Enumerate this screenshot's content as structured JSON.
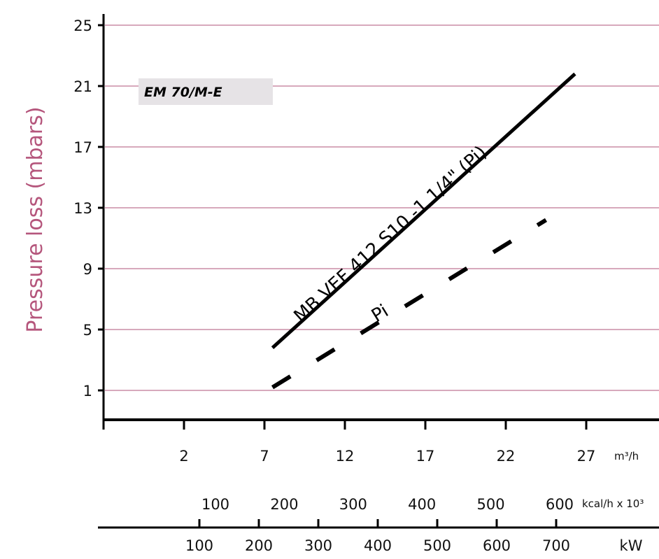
{
  "chart_data": {
    "type": "line",
    "title": "EM 70/M-E",
    "ylabel": "Pressure loss (mbars)",
    "ylim": [
      -1,
      25
    ],
    "grid": true,
    "y_ticks": [
      "1",
      "5",
      "9",
      "13",
      "17",
      "21",
      "25"
    ],
    "y_tick_values": [
      1,
      5,
      9,
      13,
      17,
      21,
      25
    ],
    "axes": [
      {
        "unit": "m³/h",
        "ticks": [
          "2",
          "7",
          "12",
          "17",
          "22",
          "27"
        ],
        "tick_values": [
          2,
          7,
          12,
          17,
          22,
          27
        ]
      },
      {
        "unit": "kcal/h x 10³",
        "ticks": [
          "100",
          "200",
          "300",
          "400",
          "500",
          "600"
        ],
        "tick_values": [
          100,
          200,
          300,
          400,
          500,
          600
        ]
      },
      {
        "unit": "kW",
        "ticks": [
          "100",
          "200",
          "300",
          "400",
          "500",
          "600",
          "700"
        ],
        "tick_values": [
          100,
          200,
          300,
          400,
          500,
          600,
          700
        ]
      }
    ],
    "x_unit": "m³/h",
    "series": [
      {
        "name": "MB VEF 412 S10 -1 1/4\" (Pi)",
        "style": "solid",
        "x": [
          7.5,
          26.3
        ],
        "y": [
          3.8,
          21.8
        ]
      },
      {
        "name": "Pi",
        "style": "dashed",
        "x": [
          7.5,
          24.5
        ],
        "y": [
          1.2,
          12.2
        ]
      }
    ]
  }
}
